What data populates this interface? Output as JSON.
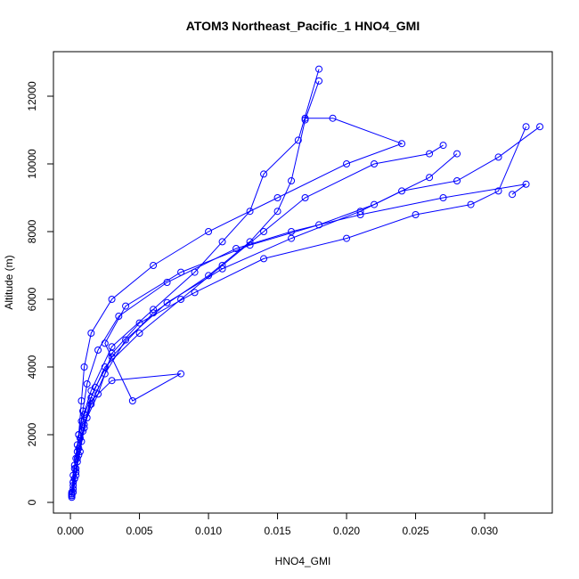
{
  "chart_data": {
    "type": "line",
    "title": "ATOM3 Northeast_Pacific_1 HNO4_GMI",
    "x_label": "HNO4_GMI",
    "y_label": "Altitude (m)",
    "color": "#0000ff",
    "marker": "circle",
    "xlim": [
      -0.00123,
      0.0349
    ],
    "ylim": [
      -316,
      13316
    ],
    "xticks": [
      {
        "value": 0,
        "label": "0.000"
      },
      {
        "value": 0.005,
        "label": "0.005"
      },
      {
        "value": 0.01,
        "label": "0.010"
      },
      {
        "value": 0.015,
        "label": "0.015"
      },
      {
        "value": 0.02,
        "label": "0.020"
      },
      {
        "value": 0.025,
        "label": "0.025"
      },
      {
        "value": 0.03,
        "label": "0.030"
      }
    ],
    "yticks": [
      0,
      2000,
      4000,
      6000,
      8000,
      10000,
      12000
    ],
    "series": [
      {
        "x": [
          0.0001,
          0.0002,
          0.0003,
          0.0005,
          0.0006,
          0.0008,
          0.001,
          0.0015,
          0.003,
          0.006,
          0.01,
          0.015,
          0.02,
          0.024,
          0.019,
          0.017
        ],
        "values": [
          200,
          600,
          1000,
          1500,
          2000,
          3000,
          4000,
          5000,
          6000,
          7000,
          8000,
          9000,
          10000,
          10600,
          11350,
          11350
        ]
      },
      {
        "x": [
          0.0001,
          0.0002,
          0.0004,
          0.0006,
          0.0009,
          0.0012,
          0.002,
          0.0035,
          0.007,
          0.012,
          0.016,
          0.021,
          0.027,
          0.033,
          0.032
        ],
        "values": [
          300,
          800,
          1300,
          2000,
          2700,
          3500,
          4500,
          5500,
          6500,
          7500,
          8000,
          8500,
          9000,
          9400,
          9100
        ]
      },
      {
        "x": [
          0.0001,
          0.0003,
          0.0005,
          0.0008,
          0.0012,
          0.002,
          0.003,
          0.005,
          0.009,
          0.014,
          0.02,
          0.025,
          0.029,
          0.031,
          0.033
        ],
        "values": [
          250,
          700,
          1200,
          1800,
          2500,
          3200,
          4400,
          5300,
          6200,
          7200,
          7800,
          8500,
          8800,
          9200,
          11100
        ]
      },
      {
        "x": [
          0.0002,
          0.0004,
          0.0007,
          0.001,
          0.0015,
          0.003,
          0.008,
          0.0045,
          0.0025,
          0.004,
          0.008,
          0.013,
          0.018,
          0.022,
          0.026,
          0.028
        ],
        "values": [
          400,
          900,
          1500,
          2200,
          3000,
          3600,
          3800,
          3000,
          4700,
          5800,
          6800,
          7600,
          8200,
          8800,
          9600,
          10300
        ]
      },
      {
        "x": [
          0.0001,
          0.0002,
          0.0004,
          0.0006,
          0.001,
          0.0015,
          0.0025,
          0.005,
          0.008,
          0.011,
          0.014,
          0.017,
          0.022,
          0.026,
          0.027
        ],
        "values": [
          150,
          500,
          1000,
          1600,
          2300,
          3100,
          4000,
          5000,
          6000,
          7000,
          8000,
          9000,
          10000,
          10300,
          10550
        ]
      },
      {
        "x": [
          0.0001,
          0.0003,
          0.0005,
          0.0007,
          0.001,
          0.0018,
          0.003,
          0.006,
          0.01,
          0.013,
          0.015,
          0.016,
          0.017,
          0.018
        ],
        "values": [
          200,
          700,
          1300,
          1900,
          2600,
          3400,
          4300,
          5600,
          6700,
          7700,
          8600,
          9500,
          11300,
          12450
        ]
      },
      {
        "x": [
          0.0001,
          0.0002,
          0.0003,
          0.0005,
          0.0008,
          0.0015,
          0.003,
          0.006,
          0.009,
          0.011,
          0.013,
          0.014,
          0.0165,
          0.018
        ],
        "values": [
          250,
          600,
          1100,
          1700,
          2400,
          3300,
          4600,
          5700,
          6800,
          7700,
          8600,
          9700,
          10700,
          12800
        ]
      },
      {
        "x": [
          0.0002,
          0.0004,
          0.0006,
          0.0009,
          0.0015,
          0.0025,
          0.004,
          0.007,
          0.011,
          0.016,
          0.021,
          0.024,
          0.028,
          0.031,
          0.034
        ],
        "values": [
          300,
          800,
          1400,
          2100,
          2900,
          3800,
          4800,
          5900,
          6900,
          7800,
          8600,
          9200,
          9500,
          10200,
          11100
        ]
      }
    ]
  }
}
